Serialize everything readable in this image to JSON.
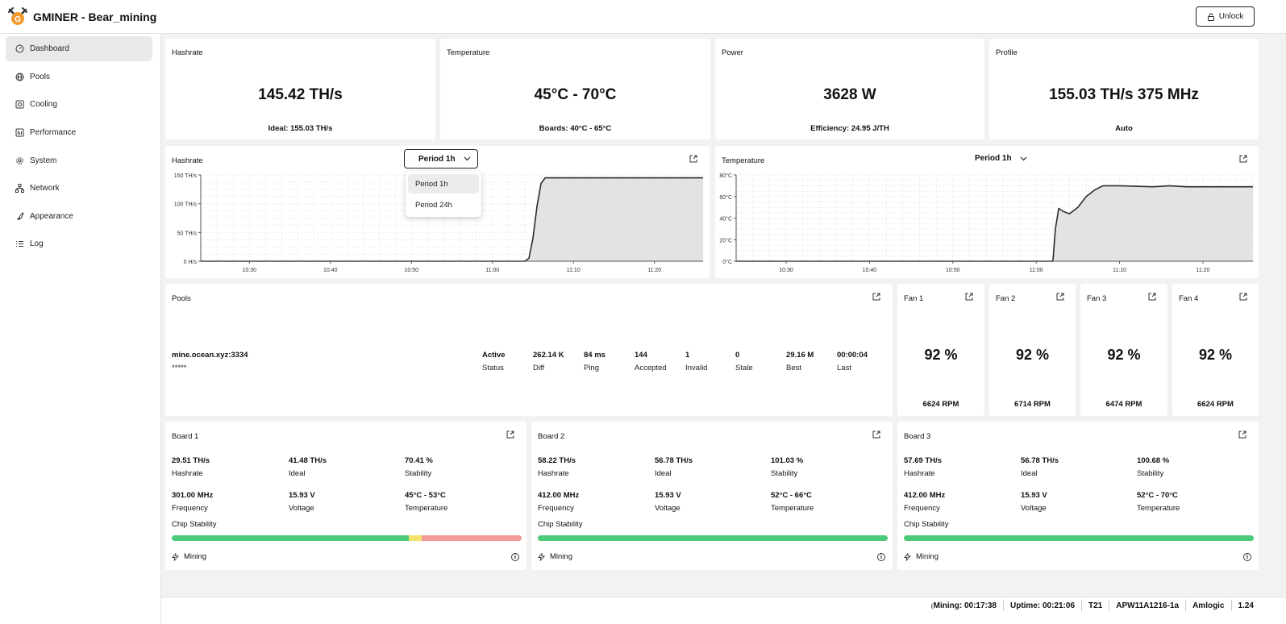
{
  "app": {
    "title": "GMINER - Bear_mining",
    "unlock_label": "Unlock"
  },
  "sidebar": {
    "items": [
      {
        "label": "Dashboard",
        "icon": "dashboard-icon",
        "active": true
      },
      {
        "label": "Pools",
        "icon": "globe-icon"
      },
      {
        "label": "Cooling",
        "icon": "fan-icon"
      },
      {
        "label": "Performance",
        "icon": "performance-icon"
      },
      {
        "label": "System",
        "icon": "gear-icon"
      },
      {
        "label": "Network",
        "icon": "network-icon"
      },
      {
        "label": "Appearance",
        "icon": "brush-icon"
      },
      {
        "label": "Log",
        "icon": "list-icon"
      }
    ]
  },
  "summary": {
    "hashrate": {
      "title": "Hashrate",
      "value": "145.42 TH/s",
      "sub": "Ideal: 155.03 TH/s"
    },
    "temperature": {
      "title": "Temperature",
      "value": "45°C - 70°C",
      "sub": "Boards: 40°C - 65°C"
    },
    "power": {
      "title": "Power",
      "value": "3628 W",
      "sub": "Efficiency: 24.95 J/TH"
    },
    "profile": {
      "title": "Profile",
      "value": "155.03 TH/s 375 MHz",
      "sub": "Auto"
    }
  },
  "charts": {
    "hashrate": {
      "title": "Hashrate",
      "period": "Period 1h",
      "options": [
        "Period 1h",
        "Period 24h"
      ]
    },
    "temperature": {
      "title": "Temperature",
      "period": "Period 1h"
    }
  },
  "chart_data": [
    {
      "type": "area",
      "title": "Hashrate",
      "x_ticks": [
        "10:30",
        "10:40",
        "10:50",
        "11:00",
        "11:10",
        "11:20"
      ],
      "y_ticks": [
        "0 H/s",
        "50 TH/s",
        "100 TH/s",
        "150 TH/s"
      ],
      "ylim": [
        0,
        150
      ],
      "xlim": [
        "10:24",
        "11:26"
      ],
      "grid": true,
      "series": [
        {
          "x": [
            "10:24",
            "11:04",
            "11:04.5",
            "11:05",
            "11:05.5",
            "11:06",
            "11:06.5",
            "11:08",
            "11:12",
            "11:16",
            "11:20",
            "11:24",
            "11:26"
          ],
          "y": [
            0,
            0,
            5,
            40,
            95,
            135,
            145,
            145,
            145,
            145,
            145,
            145,
            145
          ]
        }
      ]
    },
    {
      "type": "area",
      "title": "Temperature",
      "x_ticks": [
        "10:30",
        "10:40",
        "10:50",
        "11:00",
        "11:10",
        "11:20"
      ],
      "y_ticks": [
        "0°C",
        "20°C",
        "40°C",
        "60°C",
        "80°C"
      ],
      "ylim": [
        0,
        80
      ],
      "xlim": [
        "10:24",
        "11:26"
      ],
      "grid": true,
      "series": [
        {
          "x": [
            "10:24",
            "11:02",
            "11:02.3",
            "11:02.7",
            "11:03.3",
            "11:04",
            "11:05",
            "11:06",
            "11:07",
            "11:08",
            "11:10",
            "11:14",
            "11:16",
            "11:18",
            "11:26"
          ],
          "y": [
            0,
            0,
            30,
            49,
            46,
            44,
            50,
            60,
            66,
            70,
            70,
            69,
            70,
            69,
            69
          ]
        }
      ]
    }
  ],
  "pools": {
    "title": "Pools",
    "url": "mine.ocean.xyz:3334",
    "worker": "*****",
    "cols": [
      {
        "value": "Active",
        "label": "Status"
      },
      {
        "value": "262.14 K",
        "label": "Diff"
      },
      {
        "value": "84 ms",
        "label": "Ping"
      },
      {
        "value": "144",
        "label": "Accepted"
      },
      {
        "value": "1",
        "label": "Invalid"
      },
      {
        "value": "0",
        "label": "Stale"
      },
      {
        "value": "29.16 M",
        "label": "Best"
      },
      {
        "value": "00:00:04",
        "label": "Last"
      }
    ]
  },
  "fans": [
    {
      "title": "Fan 1",
      "value": "92 %",
      "rpm": "6624 RPM"
    },
    {
      "title": "Fan 2",
      "value": "92 %",
      "rpm": "6714 RPM"
    },
    {
      "title": "Fan 3",
      "value": "92 %",
      "rpm": "6474 RPM"
    },
    {
      "title": "Fan 4",
      "value": "92 %",
      "rpm": "6624 RPM"
    }
  ],
  "boards": [
    {
      "title": "Board 1",
      "hashrate": "29.51 TH/s",
      "ideal": "41.48 TH/s",
      "stability": "70.41 %",
      "frequency": "301.00 MHz",
      "voltage": "15.93 V",
      "temperature": "45°C - 53°C",
      "chip_stability_segments": [
        {
          "fraction": 0.678,
          "color": "#4cca7a"
        },
        {
          "fraction": 0.037,
          "color": "#f2e46a"
        },
        {
          "fraction": 0.285,
          "color": "#f29a98"
        }
      ],
      "status": "Mining"
    },
    {
      "title": "Board 2",
      "hashrate": "58.22 TH/s",
      "ideal": "56.78 TH/s",
      "stability": "101.03 %",
      "frequency": "412.00 MHz",
      "voltage": "15.93 V",
      "temperature": "52°C - 66°C",
      "chip_stability_segments": [
        {
          "fraction": 1,
          "color": "#4cca7a"
        }
      ],
      "status": "Mining"
    },
    {
      "title": "Board 3",
      "hashrate": "57.69 TH/s",
      "ideal": "56.78 TH/s",
      "stability": "100.68 %",
      "frequency": "412.00 MHz",
      "voltage": "15.93 V",
      "temperature": "52°C - 70°C",
      "chip_stability_segments": [
        {
          "fraction": 1,
          "color": "#4cca7a"
        }
      ],
      "status": "Mining"
    }
  ],
  "board_labels": {
    "hashrate": "Hashrate",
    "ideal": "Ideal",
    "stability": "Stability",
    "frequency": "Frequency",
    "voltage": "Voltage",
    "temperature": "Temperature",
    "chip_stability": "Chip Stability"
  },
  "statusbar": {
    "mining": "Mining: 00:17:38",
    "uptime": "Uptime: 00:21:06",
    "model": "T21",
    "serial": "APW11A1216-1a",
    "platform": "Amlogic",
    "version": "1.24"
  }
}
